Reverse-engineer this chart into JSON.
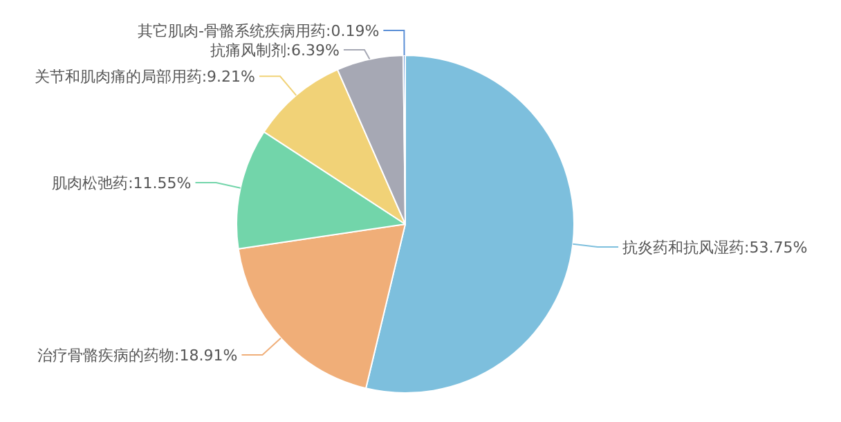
{
  "chart_data": {
    "type": "pie",
    "categories": [
      "抗炎药和抗风湿药",
      "治疗骨骼疾病的药物",
      "肌肉松弛药",
      "关节和肌肉痛的局部用药",
      "抗痛风制剂",
      "其它肌肉-骨骼系统疾病用药"
    ],
    "values": [
      53.75,
      18.91,
      11.55,
      9.21,
      6.39,
      0.19
    ],
    "value_labels": [
      "53.75%",
      "18.91%",
      "11.55%",
      "9.21%",
      "6.39%",
      "0.19%"
    ],
    "colors": [
      "#7dbfdd",
      "#f0ae78",
      "#72d5aa",
      "#f1d277",
      "#a6a8b4",
      "#5b8fd6"
    ]
  }
}
